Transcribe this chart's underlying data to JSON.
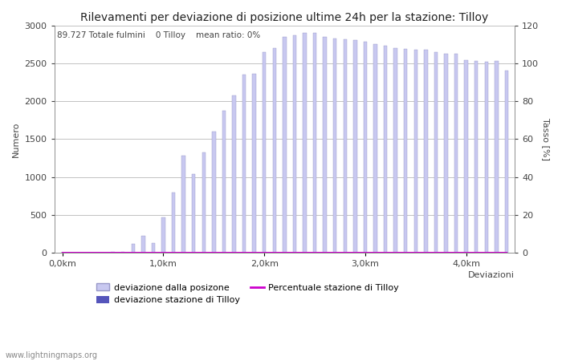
{
  "title": "Rilevamenti per deviazione di posizione ultime 24h per la stazione: Tilloy",
  "subtitle": "89.727 Totale fulmini    0 Tilloy    mean ratio: 0%",
  "ylabel_left": "Numero",
  "ylabel_right": "Tasso [%]",
  "xlabel": "Deviazioni",
  "watermark": "www.lightningmaps.org",
  "xtick_labels": [
    "0,0km",
    "1,0km",
    "2,0km",
    "3,0km",
    "4,0km"
  ],
  "xtick_positions": [
    0,
    10,
    20,
    30,
    40
  ],
  "ylim_left": [
    0,
    3000
  ],
  "ylim_right": [
    0,
    120
  ],
  "yticks_left": [
    0,
    500,
    1000,
    1500,
    2000,
    2500,
    3000
  ],
  "yticks_right": [
    0,
    20,
    40,
    60,
    80,
    100,
    120
  ],
  "bar_color": "#c8c8f0",
  "bar_edge_color": "#9898c8",
  "station_bar_color": "#5555bb",
  "line_color": "#cc00cc",
  "bar_values": [
    0,
    0,
    0,
    0,
    0,
    10,
    15,
    120,
    220,
    130,
    470,
    800,
    1280,
    1040,
    1320,
    1600,
    1870,
    2080,
    2350,
    2360,
    2650,
    2700,
    2850,
    2870,
    2900,
    2900,
    2850,
    2830,
    2820,
    2810,
    2780,
    2750,
    2730,
    2700,
    2690,
    2680,
    2680,
    2650,
    2620,
    2620,
    2540,
    2530,
    2520,
    2530,
    2400
  ],
  "station_bar_values": [
    0,
    0,
    0,
    0,
    0,
    0,
    0,
    0,
    0,
    0,
    0,
    0,
    0,
    0,
    0,
    0,
    0,
    0,
    0,
    0,
    0,
    0,
    0,
    0,
    0,
    0,
    0,
    0,
    0,
    0,
    0,
    0,
    0,
    0,
    0,
    0,
    0,
    0,
    0,
    0,
    0,
    0,
    0,
    0,
    0
  ],
  "line_values": [
    0,
    0,
    0,
    0,
    0,
    0,
    0,
    0,
    0,
    0,
    0,
    0,
    0,
    0,
    0,
    0,
    0,
    0,
    0,
    0,
    0,
    0,
    0,
    0,
    0,
    0,
    0,
    0,
    0,
    0,
    0,
    0,
    0,
    0,
    0,
    0,
    0,
    0,
    0,
    0,
    0,
    0,
    0,
    0,
    0
  ],
  "legend_entries": [
    {
      "label": "deviazione dalla posizone",
      "color": "#c8c8f0",
      "type": "bar"
    },
    {
      "label": "deviazione stazione di Tilloy",
      "color": "#5555bb",
      "type": "bar"
    },
    {
      "label": "Percentuale stazione di Tilloy",
      "color": "#cc00cc",
      "type": "line"
    }
  ],
  "background_color": "#ffffff",
  "grid_color": "#aaaaaa",
  "title_fontsize": 10,
  "axis_fontsize": 8,
  "tick_fontsize": 8
}
